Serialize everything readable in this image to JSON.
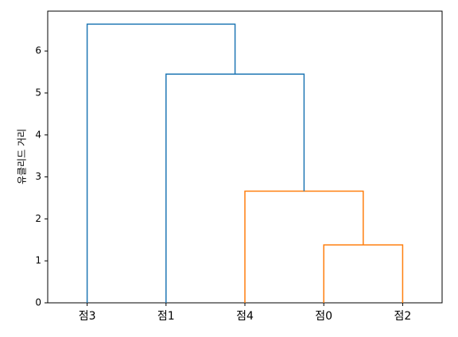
{
  "chart_data": {
    "type": "dendrogram",
    "y_label": "유클리드 거리",
    "leaves": [
      "점3",
      "점1",
      "점4",
      "점0",
      "점2"
    ],
    "merges": [
      {
        "children": [
          3,
          4
        ],
        "height": 1.38,
        "color": "#ff7f0e"
      },
      {
        "children": [
          2,
          5
        ],
        "height": 2.66,
        "color": "#ff7f0e"
      },
      {
        "children": [
          1,
          6
        ],
        "height": 5.45,
        "color": "#1f77b4"
      },
      {
        "children": [
          0,
          7
        ],
        "height": 6.64,
        "color": "#1f77b4"
      }
    ],
    "ylim": [
      0,
      6.95
    ],
    "yticks": [
      0,
      1,
      2,
      3,
      4,
      5,
      6
    ],
    "grid": false
  }
}
